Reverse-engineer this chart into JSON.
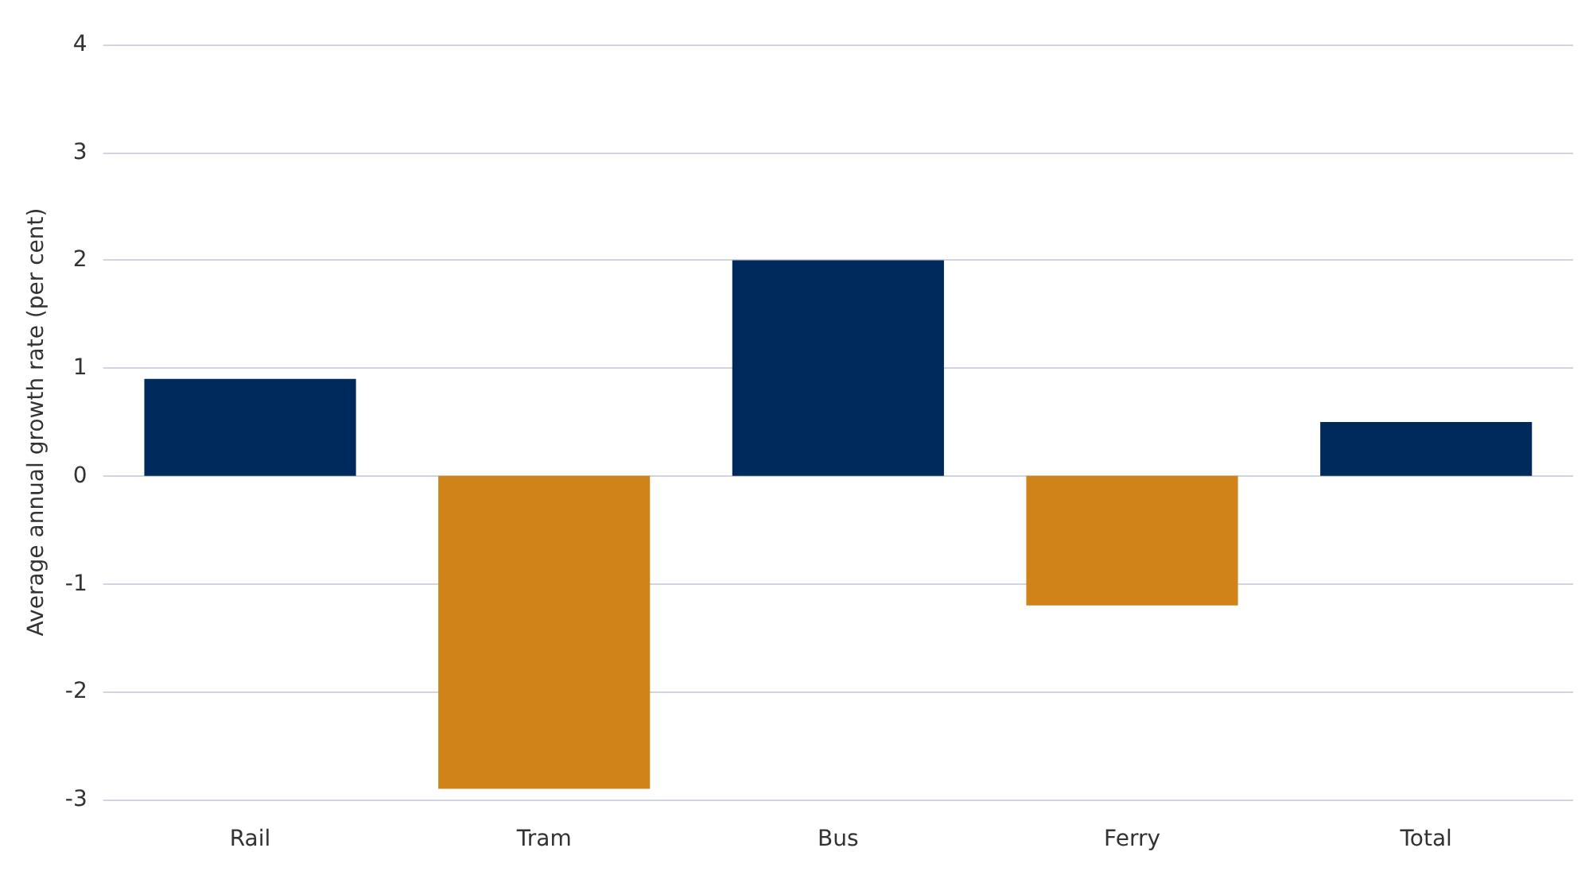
{
  "chart_data": {
    "type": "bar",
    "ylabel": "Average annual growth rate (per cent)",
    "categories": [
      "Rail",
      "Tram",
      "Bus",
      "Ferry",
      "Total"
    ],
    "values": [
      0.9,
      -2.9,
      2.0,
      -1.2,
      0.5
    ],
    "colors": [
      "#002a5c",
      "#d08319",
      "#002a5c",
      "#d08319",
      "#002a5c"
    ],
    "ylim": [
      -3,
      4
    ],
    "yticks": [
      -3,
      -2,
      -1,
      0,
      1,
      2,
      3,
      4
    ],
    "grid": "y"
  }
}
